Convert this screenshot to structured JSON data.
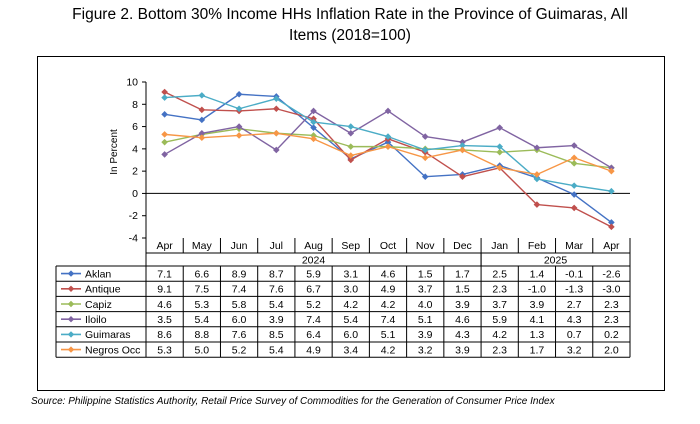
{
  "title_line1": "Figure 2. Bottom 30% Income HHs Inflation Rate in the Province of Guimaras, All",
  "title_line2": "Items (2018=100)",
  "source": "Source: Philippine Statistics Authority, Retail Price Survey of Commodities for the Generation of Consumer Price Index",
  "chart_data": {
    "type": "line",
    "title": "Bottom 30% Income HHs Inflation Rate in the Province of Guimaras, All Items (2018=100)",
    "ylabel": "In Percent",
    "xlabel": "",
    "ylim": [
      -4,
      10
    ],
    "yticks": [
      -4,
      -2,
      0,
      2,
      4,
      6,
      8,
      10
    ],
    "grid": false,
    "legend": "table-left",
    "categories": [
      "Apr",
      "May",
      "Jun",
      "Jul",
      "Aug",
      "Sep",
      "Oct",
      "Nov",
      "Dec",
      "Jan",
      "Feb",
      "Mar",
      "Apr"
    ],
    "year_groups": [
      {
        "label": "2024",
        "start": 0,
        "end": 8
      },
      {
        "label": "2025",
        "start": 9,
        "end": 12
      }
    ],
    "series": [
      {
        "name": "Aklan",
        "color": "#4472c4",
        "marker": "diamond",
        "values": [
          7.1,
          6.6,
          8.9,
          8.7,
          5.9,
          3.1,
          4.6,
          1.5,
          1.7,
          2.5,
          1.4,
          -0.1,
          -2.6
        ],
        "labels": [
          "7.1",
          "6.6",
          "8.9",
          "8.7",
          "5.9",
          "3.1",
          "4.6",
          "1.5",
          "1.7",
          "2.5",
          "1.4",
          "-0.1",
          "-2.6"
        ]
      },
      {
        "name": "Antique",
        "color": "#c0504d",
        "marker": "diamond",
        "values": [
          9.1,
          7.5,
          7.4,
          7.6,
          6.7,
          3.0,
          4.9,
          3.7,
          1.5,
          2.3,
          -1.0,
          -1.3,
          -3.0
        ],
        "labels": [
          "9.1",
          "7.5",
          "7.4",
          "7.6",
          "6.7",
          "3.0",
          "4.9",
          "3.7",
          "1.5",
          "2.3",
          "-1.0",
          "-1.3",
          "-3.0"
        ]
      },
      {
        "name": "Capiz",
        "color": "#9bbb59",
        "marker": "diamond",
        "values": [
          4.6,
          5.3,
          5.8,
          5.4,
          5.2,
          4.2,
          4.2,
          4.0,
          3.9,
          3.7,
          3.9,
          2.7,
          2.3
        ],
        "labels": [
          "4.6",
          "5.3",
          "5.8",
          "5.4",
          "5.2",
          "4.2",
          "4.2",
          "4.0",
          "3.9",
          "3.7",
          "3.9",
          "2.7",
          "2.3"
        ]
      },
      {
        "name": "Iloilo",
        "color": "#8064a2",
        "marker": "diamond",
        "values": [
          3.5,
          5.4,
          6.0,
          3.9,
          7.4,
          5.4,
          7.4,
          5.1,
          4.6,
          5.9,
          4.1,
          4.3,
          2.3
        ],
        "labels": [
          "3.5",
          "5.4",
          "6.0",
          "3.9",
          "7.4",
          "5.4",
          "7.4",
          "5.1",
          "4.6",
          "5.9",
          "4.1",
          "4.3",
          "2.3"
        ]
      },
      {
        "name": "Guimaras",
        "color": "#4bacc6",
        "marker": "diamond",
        "values": [
          8.6,
          8.8,
          7.6,
          8.5,
          6.4,
          6.0,
          5.1,
          3.9,
          4.3,
          4.2,
          1.3,
          0.7,
          0.2
        ],
        "labels": [
          "8.6",
          "8.8",
          "7.6",
          "8.5",
          "6.4",
          "6.0",
          "5.1",
          "3.9",
          "4.3",
          "4.2",
          "1.3",
          "0.7",
          "0.2"
        ]
      },
      {
        "name": "Negros Occ",
        "color": "#f79646",
        "marker": "diamond",
        "values": [
          5.3,
          5.0,
          5.2,
          5.4,
          4.9,
          3.4,
          4.2,
          3.2,
          3.9,
          2.3,
          1.7,
          3.2,
          2.0
        ],
        "labels": [
          "5.3",
          "5.0",
          "5.2",
          "5.4",
          "4.9",
          "3.4",
          "4.2",
          "3.2",
          "3.9",
          "2.3",
          "1.7",
          "3.2",
          "2.0"
        ]
      }
    ]
  }
}
